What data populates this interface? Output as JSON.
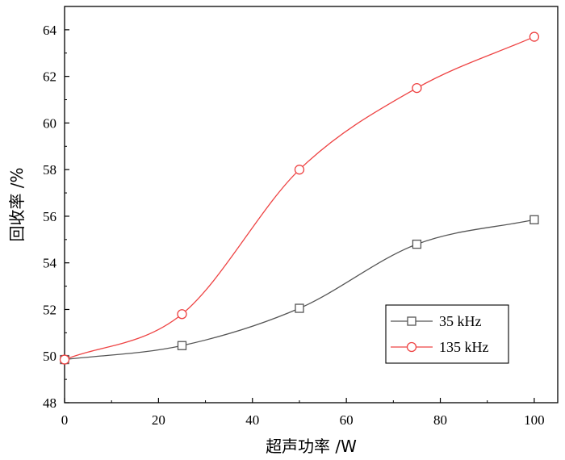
{
  "chart_data": {
    "type": "line",
    "xlabel": "超声功率 /W",
    "ylabel": "回收率 /%",
    "xlim": [
      0,
      105
    ],
    "ylim": [
      48,
      65
    ],
    "xticks": [
      0,
      20,
      40,
      60,
      80,
      100
    ],
    "yticks": [
      48,
      50,
      52,
      54,
      56,
      58,
      60,
      62,
      64
    ],
    "grid": false,
    "legend_position": "bottom-right",
    "series": [
      {
        "name": "35 kHz",
        "marker": "square",
        "color": "#555555",
        "x": [
          0,
          25,
          50,
          75,
          100
        ],
        "y": [
          49.85,
          50.45,
          52.05,
          54.8,
          55.85
        ]
      },
      {
        "name": "135 kHz",
        "marker": "circle",
        "color": "#ee4444",
        "x": [
          0,
          25,
          50,
          75,
          100
        ],
        "y": [
          49.85,
          51.8,
          58.0,
          61.5,
          63.7
        ]
      }
    ]
  }
}
